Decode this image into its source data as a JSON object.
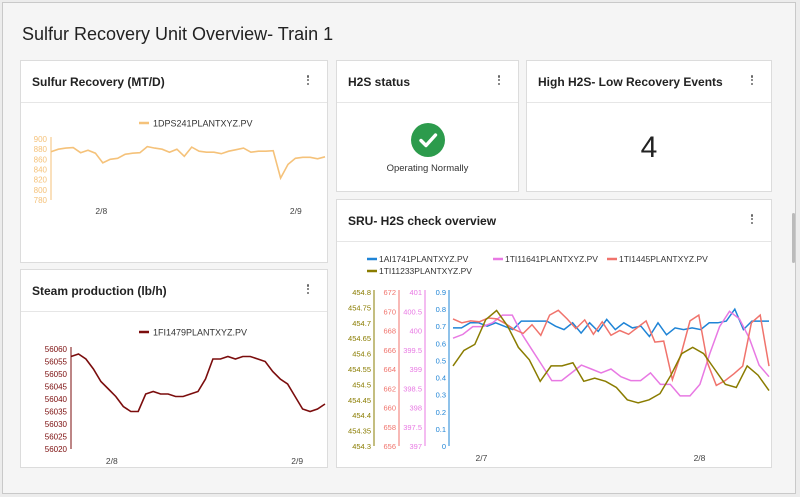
{
  "dashboard": {
    "title": "Sulfur Recovery Unit Overview- Train 1"
  },
  "cards": {
    "sulfur": {
      "title": "Sulfur Recovery (MT/D)"
    },
    "steam": {
      "title": "Steam production (lb/h)"
    },
    "h2s_status": {
      "title": "H2S status",
      "status_text": "Operating Normally",
      "status_color": "#2c9b4c"
    },
    "events": {
      "title": "High H2S- Low Recovery Events",
      "count": "4"
    },
    "overview": {
      "title": "SRU- H2S check overview"
    }
  },
  "icons": {
    "menu": "kebab-menu-icon",
    "status": "check-circle-icon"
  },
  "chart_data": [
    {
      "id": "sulfur",
      "type": "line",
      "series": [
        {
          "name": "1DPS241PLANTXYZ.PV",
          "color": "#f5c27a",
          "values": [
            875,
            880,
            882,
            883,
            873,
            878,
            872,
            853,
            860,
            862,
            870,
            872,
            873,
            885,
            882,
            880,
            874,
            880,
            866,
            884,
            876,
            874,
            874,
            871,
            876,
            879,
            882,
            874,
            876,
            876,
            877,
            823,
            850,
            862,
            864,
            864,
            861,
            865
          ]
        }
      ],
      "xticks": [
        "2/8",
        "2/9"
      ],
      "ylim": [
        780,
        900
      ],
      "yticks": [
        780,
        800,
        820,
        840,
        860,
        880,
        900
      ],
      "axis_color": "#f5c27a"
    },
    {
      "id": "steam",
      "type": "line",
      "series": [
        {
          "name": "1FI1479PLANTXYZ.PV",
          "color": "#7b0d0d",
          "values": [
            56057,
            56058,
            56056,
            56052,
            56047,
            56044,
            56041,
            56037,
            56035,
            56035,
            56042,
            56043,
            56042,
            56042,
            56041,
            56041,
            56042,
            56043,
            56048,
            56056,
            56056,
            56057,
            56056,
            56057,
            56057,
            56056,
            56055,
            56051,
            56048,
            56046,
            56041,
            56036,
            56035,
            56036,
            56038
          ]
        }
      ],
      "xticks": [
        "2/8",
        "2/9"
      ],
      "ylim": [
        56020,
        56060
      ],
      "yticks": [
        56020,
        56025,
        56030,
        56035,
        56040,
        56045,
        56050,
        56055,
        56060
      ],
      "axis_color": "#7b0d0d"
    },
    {
      "id": "overview",
      "type": "line",
      "series": [
        {
          "name": "1AI1741PLANTXYZ.PV",
          "color": "#1f84d6",
          "axis": "a",
          "values": [
            0.69,
            0.69,
            0.72,
            0.72,
            0.7,
            0.72,
            0.7,
            0.68,
            0.73,
            0.73,
            0.73,
            0.73,
            0.7,
            0.68,
            0.72,
            0.66,
            0.72,
            0.67,
            0.74,
            0.68,
            0.72,
            0.69,
            0.7,
            0.64,
            0.72,
            0.65,
            0.69,
            0.68,
            0.69,
            0.68,
            0.72,
            0.72,
            0.73,
            0.8,
            0.68,
            0.73,
            0.73,
            0.73
          ]
        },
        {
          "name": "1TI11641PLANTXYZ.PV",
          "color": "#e879e3",
          "axis": "b",
          "values": [
            399.8,
            399.9,
            400.1,
            400.1,
            400.2,
            400.4,
            400.4,
            399.9,
            399.5,
            399.1,
            398.7,
            398.7,
            398.9,
            399.1,
            399.0,
            398.9,
            399.0,
            398.8,
            398.7,
            398.7,
            398.9,
            398.6,
            398.6,
            398.3,
            398.3,
            398.6,
            399.4,
            400.1,
            400.5,
            400.3,
            399.8,
            399.1,
            398.8
          ]
        },
        {
          "name": "1TI1445PLANTXYZ.PV",
          "color": "#f0736c",
          "axis": "c",
          "values": [
            669.2,
            668.8,
            669.0,
            668.9,
            669.3,
            669.2,
            668.7,
            668.1,
            667.7,
            668.6,
            667.5,
            669.6,
            670.1,
            669.2,
            668.2,
            669.1,
            667.6,
            668.9,
            667.5,
            668.0,
            667.6,
            668.3,
            669.0,
            666.8,
            666.9,
            662.9,
            665.6,
            669.0,
            669.6,
            664.6,
            662.3,
            662.8,
            663.5,
            664.3,
            668.8,
            669.6,
            664.3
          ]
        },
        {
          "name": "1TI11233PLANTXYZ.PV",
          "color": "#8a7c00",
          "axis": "d",
          "values": [
            454.56,
            454.61,
            454.63,
            454.71,
            454.74,
            454.69,
            454.62,
            454.58,
            454.51,
            454.56,
            454.56,
            454.57,
            454.51,
            454.52,
            454.51,
            454.49,
            454.45,
            454.44,
            454.45,
            454.47,
            454.53,
            454.6,
            454.62,
            454.6,
            454.55,
            454.5,
            454.49,
            454.56,
            454.53,
            454.48
          ]
        }
      ],
      "xticks": [
        "2/7",
        "2/8"
      ],
      "axes": [
        {
          "id": "d",
          "color": "#8a7c00",
          "ylim": [
            454.3,
            454.8
          ],
          "ticks": [
            454.3,
            454.35,
            454.4,
            454.45,
            454.5,
            454.55,
            454.6,
            454.65,
            454.7,
            454.75,
            454.8
          ]
        },
        {
          "id": "c",
          "color": "#f0736c",
          "ylim": [
            656,
            672
          ],
          "ticks": [
            656,
            658,
            660,
            662,
            664,
            666,
            668,
            670,
            672
          ]
        },
        {
          "id": "b",
          "color": "#e879e3",
          "ylim": [
            397,
            401
          ],
          "ticks": [
            397,
            397.5,
            398,
            398.5,
            399,
            399.5,
            400,
            400.5,
            401
          ]
        },
        {
          "id": "a",
          "color": "#1f84d6",
          "ylim": [
            0,
            0.9
          ],
          "ticks": [
            0,
            0.1,
            0.2,
            0.3,
            0.4,
            0.5,
            0.6,
            0.7,
            0.8,
            0.9
          ]
        }
      ]
    }
  ]
}
